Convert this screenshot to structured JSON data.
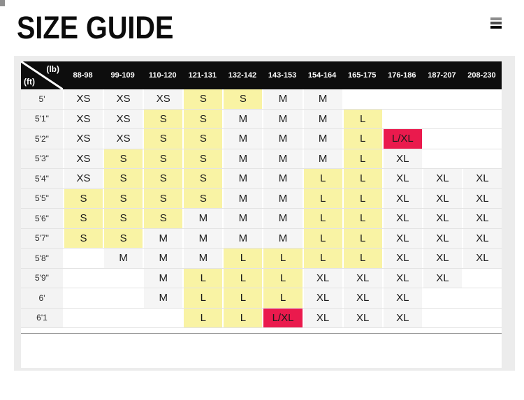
{
  "header": {
    "title": "SIZE GUIDE",
    "menu_icon": "hamburger-icon"
  },
  "size_table": {
    "corner": {
      "weight_unit": "(lb)",
      "height_unit": "(ft)"
    },
    "weight_ranges": [
      "88-98",
      "99-109",
      "110-120",
      "121-131",
      "132-142",
      "143-153",
      "154-164",
      "165-175",
      "176-186",
      "187-207",
      "208-230"
    ],
    "rows": [
      {
        "height_label": "5'",
        "cells": [
          {
            "size": "XS",
            "style": "plain"
          },
          {
            "size": "XS",
            "style": "plain"
          },
          {
            "size": "XS",
            "style": "plain"
          },
          {
            "size": "S",
            "style": "yellow"
          },
          {
            "size": "S",
            "style": "yellow"
          },
          {
            "size": "M",
            "style": "plain"
          },
          {
            "size": "M",
            "style": "plain"
          },
          {
            "size": "",
            "style": "empty"
          },
          {
            "size": "",
            "style": "empty"
          },
          {
            "size": "",
            "style": "empty"
          },
          {
            "size": "",
            "style": "empty"
          }
        ]
      },
      {
        "height_label": "5'1\"",
        "cells": [
          {
            "size": "XS",
            "style": "plain"
          },
          {
            "size": "XS",
            "style": "plain"
          },
          {
            "size": "S",
            "style": "yellow"
          },
          {
            "size": "S",
            "style": "yellow"
          },
          {
            "size": "M",
            "style": "plain"
          },
          {
            "size": "M",
            "style": "plain"
          },
          {
            "size": "M",
            "style": "plain"
          },
          {
            "size": "L",
            "style": "yellow"
          },
          {
            "size": "",
            "style": "empty"
          },
          {
            "size": "",
            "style": "empty"
          },
          {
            "size": "",
            "style": "empty"
          }
        ]
      },
      {
        "height_label": "5'2\"",
        "cells": [
          {
            "size": "XS",
            "style": "plain"
          },
          {
            "size": "XS",
            "style": "plain"
          },
          {
            "size": "S",
            "style": "yellow"
          },
          {
            "size": "S",
            "style": "yellow"
          },
          {
            "size": "M",
            "style": "plain"
          },
          {
            "size": "M",
            "style": "plain"
          },
          {
            "size": "M",
            "style": "plain"
          },
          {
            "size": "L",
            "style": "yellow"
          },
          {
            "size": "L/XL",
            "style": "red"
          },
          {
            "size": "",
            "style": "empty"
          },
          {
            "size": "",
            "style": "empty"
          }
        ]
      },
      {
        "height_label": "5'3\"",
        "cells": [
          {
            "size": "XS",
            "style": "plain"
          },
          {
            "size": "S",
            "style": "yellow"
          },
          {
            "size": "S",
            "style": "yellow"
          },
          {
            "size": "S",
            "style": "yellow"
          },
          {
            "size": "M",
            "style": "plain"
          },
          {
            "size": "M",
            "style": "plain"
          },
          {
            "size": "M",
            "style": "plain"
          },
          {
            "size": "L",
            "style": "yellow"
          },
          {
            "size": "XL",
            "style": "plain"
          },
          {
            "size": "",
            "style": "empty"
          },
          {
            "size": "",
            "style": "empty"
          }
        ]
      },
      {
        "height_label": "5'4\"",
        "cells": [
          {
            "size": "XS",
            "style": "plain"
          },
          {
            "size": "S",
            "style": "yellow"
          },
          {
            "size": "S",
            "style": "yellow"
          },
          {
            "size": "S",
            "style": "yellow"
          },
          {
            "size": "M",
            "style": "plain"
          },
          {
            "size": "M",
            "style": "plain"
          },
          {
            "size": "L",
            "style": "yellow"
          },
          {
            "size": "L",
            "style": "yellow"
          },
          {
            "size": "XL",
            "style": "plain"
          },
          {
            "size": "XL",
            "style": "plain"
          },
          {
            "size": "XL",
            "style": "plain"
          }
        ]
      },
      {
        "height_label": "5'5\"",
        "cells": [
          {
            "size": "S",
            "style": "yellow"
          },
          {
            "size": "S",
            "style": "yellow"
          },
          {
            "size": "S",
            "style": "yellow"
          },
          {
            "size": "S",
            "style": "yellow"
          },
          {
            "size": "M",
            "style": "plain"
          },
          {
            "size": "M",
            "style": "plain"
          },
          {
            "size": "L",
            "style": "yellow"
          },
          {
            "size": "L",
            "style": "yellow"
          },
          {
            "size": "XL",
            "style": "plain"
          },
          {
            "size": "XL",
            "style": "plain"
          },
          {
            "size": "XL",
            "style": "plain"
          }
        ]
      },
      {
        "height_label": "5'6\"",
        "cells": [
          {
            "size": "S",
            "style": "yellow"
          },
          {
            "size": "S",
            "style": "yellow"
          },
          {
            "size": "S",
            "style": "yellow"
          },
          {
            "size": "M",
            "style": "plain"
          },
          {
            "size": "M",
            "style": "plain"
          },
          {
            "size": "M",
            "style": "plain"
          },
          {
            "size": "L",
            "style": "yellow"
          },
          {
            "size": "L",
            "style": "yellow"
          },
          {
            "size": "XL",
            "style": "plain"
          },
          {
            "size": "XL",
            "style": "plain"
          },
          {
            "size": "XL",
            "style": "plain"
          }
        ]
      },
      {
        "height_label": "5'7\"",
        "cells": [
          {
            "size": "S",
            "style": "yellow"
          },
          {
            "size": "S",
            "style": "yellow"
          },
          {
            "size": "M",
            "style": "plain"
          },
          {
            "size": "M",
            "style": "plain"
          },
          {
            "size": "M",
            "style": "plain"
          },
          {
            "size": "M",
            "style": "plain"
          },
          {
            "size": "L",
            "style": "yellow"
          },
          {
            "size": "L",
            "style": "yellow"
          },
          {
            "size": "XL",
            "style": "plain"
          },
          {
            "size": "XL",
            "style": "plain"
          },
          {
            "size": "XL",
            "style": "plain"
          }
        ]
      },
      {
        "height_label": "5'8\"",
        "cells": [
          {
            "size": "",
            "style": "empty"
          },
          {
            "size": "M",
            "style": "plain"
          },
          {
            "size": "M",
            "style": "plain"
          },
          {
            "size": "M",
            "style": "plain"
          },
          {
            "size": "L",
            "style": "yellow"
          },
          {
            "size": "L",
            "style": "yellow"
          },
          {
            "size": "L",
            "style": "yellow"
          },
          {
            "size": "L",
            "style": "yellow"
          },
          {
            "size": "XL",
            "style": "plain"
          },
          {
            "size": "XL",
            "style": "plain"
          },
          {
            "size": "XL",
            "style": "plain"
          }
        ]
      },
      {
        "height_label": "5'9\"",
        "cells": [
          {
            "size": "",
            "style": "empty"
          },
          {
            "size": "",
            "style": "empty"
          },
          {
            "size": "M",
            "style": "plain"
          },
          {
            "size": "L",
            "style": "yellow"
          },
          {
            "size": "L",
            "style": "yellow"
          },
          {
            "size": "L",
            "style": "yellow"
          },
          {
            "size": "XL",
            "style": "plain"
          },
          {
            "size": "XL",
            "style": "plain"
          },
          {
            "size": "XL",
            "style": "plain"
          },
          {
            "size": "XL",
            "style": "plain"
          },
          {
            "size": "",
            "style": "empty"
          }
        ]
      },
      {
        "height_label": "6'",
        "cells": [
          {
            "size": "",
            "style": "empty"
          },
          {
            "size": "",
            "style": "empty"
          },
          {
            "size": "M",
            "style": "plain"
          },
          {
            "size": "L",
            "style": "yellow"
          },
          {
            "size": "L",
            "style": "yellow"
          },
          {
            "size": "L",
            "style": "yellow"
          },
          {
            "size": "XL",
            "style": "plain"
          },
          {
            "size": "XL",
            "style": "plain"
          },
          {
            "size": "XL",
            "style": "plain"
          },
          {
            "size": "",
            "style": "empty"
          },
          {
            "size": "",
            "style": "empty"
          }
        ]
      },
      {
        "height_label": "6'1",
        "cells": [
          {
            "size": "",
            "style": "empty"
          },
          {
            "size": "",
            "style": "empty"
          },
          {
            "size": "",
            "style": "empty"
          },
          {
            "size": "L",
            "style": "yellow"
          },
          {
            "size": "L",
            "style": "yellow"
          },
          {
            "size": "L/XL",
            "style": "red"
          },
          {
            "size": "XL",
            "style": "plain"
          },
          {
            "size": "XL",
            "style": "plain"
          },
          {
            "size": "XL",
            "style": "plain"
          },
          {
            "size": "",
            "style": "empty"
          },
          {
            "size": "",
            "style": "empty"
          }
        ]
      }
    ]
  },
  "colors": {
    "header_bar": "#0d0d0d",
    "cell_gray": "#f5f5f5",
    "highlight_yellow": "#f9f3a4",
    "highlight_red": "#ea1a4d",
    "panel_gray": "#ececec"
  }
}
